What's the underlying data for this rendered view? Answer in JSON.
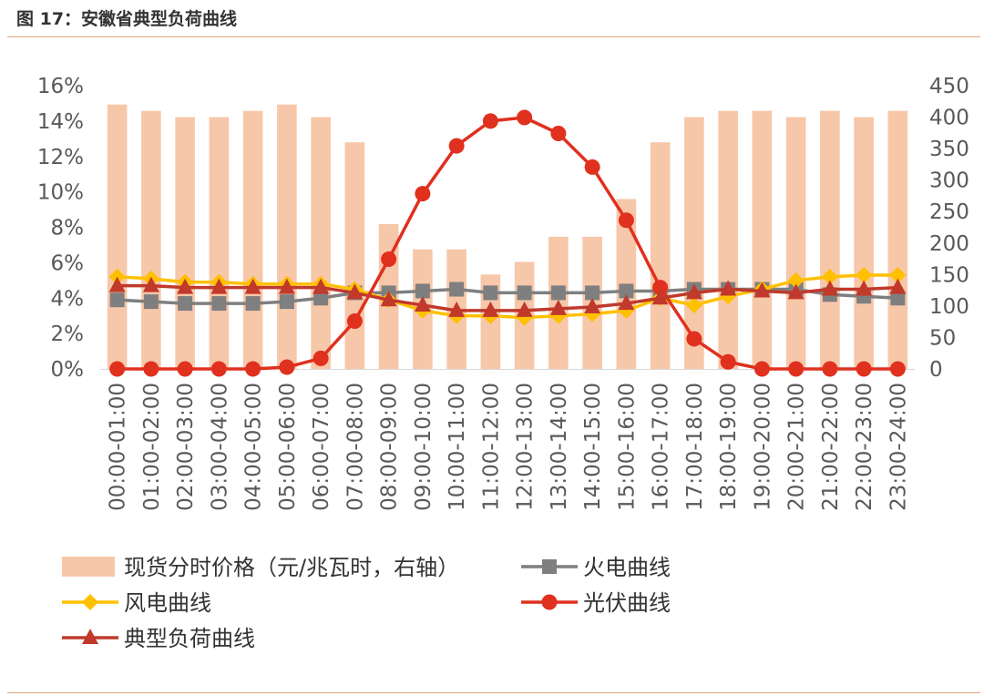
{
  "figure": {
    "title": "图 17：安徽省典型负荷曲线"
  },
  "colors": {
    "price_bar": "#f7c7a9",
    "thermal": "#7f7f7f",
    "wind": "#ffc000",
    "solar": "#e0301e",
    "load": "#c0392b",
    "rule": "#e0a37e"
  },
  "chart_data": {
    "type": "bar+line",
    "categories": [
      "00:00-01:00",
      "01:00-02:00",
      "02:00-03:00",
      "03:00-04:00",
      "04:00-05:00",
      "05:00-06:00",
      "06:00-07:00",
      "07:00-08:00",
      "08:00-09:00",
      "09:00-10:00",
      "10:00-11:00",
      "11:00-12:00",
      "12:00-13:00",
      "13:00-14:00",
      "14:00-15:00",
      "15:00-16:00",
      "16:00-17:00",
      "17:00-18:00",
      "18:00-19:00",
      "19:00-20:00",
      "20:00-21:00",
      "21:00-22:00",
      "22:00-23:00",
      "23:00-24:00"
    ],
    "left_axis": {
      "min": 0,
      "max": 16,
      "step": 2,
      "ticks": [
        "0%",
        "2%",
        "4%",
        "6%",
        "8%",
        "10%",
        "12%",
        "14%",
        "16%"
      ]
    },
    "right_axis": {
      "min": 0,
      "max": 450,
      "step": 50,
      "ticks": [
        "0",
        "50",
        "100",
        "150",
        "200",
        "250",
        "300",
        "350",
        "400",
        "450"
      ]
    },
    "series": [
      {
        "name": "现货分时价格（元/兆瓦时，右轴）",
        "type": "bar",
        "axis": "right",
        "values": [
          420,
          410,
          400,
          400,
          410,
          420,
          400,
          360,
          230,
          190,
          190,
          150,
          170,
          210,
          210,
          270,
          360,
          400,
          410,
          410,
          400,
          410,
          400,
          410
        ]
      },
      {
        "name": "火电曲线",
        "type": "line",
        "marker": "square",
        "axis": "left",
        "values": [
          3.9,
          3.8,
          3.7,
          3.7,
          3.7,
          3.8,
          4.0,
          4.3,
          4.3,
          4.4,
          4.5,
          4.3,
          4.3,
          4.3,
          4.3,
          4.4,
          4.4,
          4.5,
          4.5,
          4.5,
          4.5,
          4.2,
          4.1,
          4.0
        ]
      },
      {
        "name": "风电曲线",
        "type": "line",
        "marker": "diamond",
        "axis": "left",
        "values": [
          5.2,
          5.1,
          4.9,
          4.9,
          4.8,
          4.8,
          4.8,
          4.5,
          3.9,
          3.3,
          3.0,
          3.0,
          2.9,
          3.0,
          3.1,
          3.3,
          4.0,
          3.6,
          4.1,
          4.5,
          5.0,
          5.2,
          5.3,
          5.3
        ]
      },
      {
        "name": "光伏曲线",
        "type": "line",
        "marker": "circle",
        "axis": "left",
        "values": [
          0.0,
          0.0,
          0.0,
          0.0,
          0.0,
          0.1,
          0.6,
          2.7,
          6.2,
          9.9,
          12.6,
          14.0,
          14.2,
          13.3,
          11.4,
          8.4,
          4.6,
          1.7,
          0.4,
          0.0,
          0.0,
          0.0,
          0.0,
          0.0
        ]
      },
      {
        "name": "典型负荷曲线",
        "type": "line",
        "marker": "triangle",
        "axis": "left",
        "values": [
          4.7,
          4.7,
          4.6,
          4.6,
          4.6,
          4.6,
          4.6,
          4.3,
          3.9,
          3.6,
          3.3,
          3.3,
          3.3,
          3.4,
          3.5,
          3.7,
          4.0,
          4.3,
          4.5,
          4.4,
          4.3,
          4.5,
          4.5,
          4.6
        ]
      }
    ],
    "legend": [
      {
        "label": "现货分时价格（元/兆瓦时，右轴）",
        "kind": "bar",
        "color": "#f7c7a9"
      },
      {
        "label": "火电曲线",
        "kind": "square",
        "color": "#7f7f7f"
      },
      {
        "label": "风电曲线",
        "kind": "diamond",
        "color": "#ffc000"
      },
      {
        "label": "光伏曲线",
        "kind": "circle",
        "color": "#e0301e"
      },
      {
        "label": "典型负荷曲线",
        "kind": "triangle",
        "color": "#c0392b"
      }
    ],
    "legend_position": "bottom"
  }
}
